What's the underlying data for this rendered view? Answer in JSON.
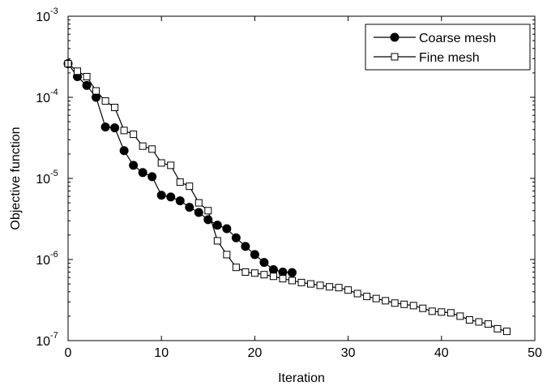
{
  "chart_data": {
    "type": "line",
    "xlabel": "Iteration",
    "ylabel": "Objective function",
    "xlim": [
      0,
      50
    ],
    "ylim": [
      1e-07,
      0.001
    ],
    "yscale": "log",
    "grid": false,
    "legend_position": "top-right",
    "x_ticks": [
      {
        "value": 0,
        "label": "0"
      },
      {
        "value": 10,
        "label": "10"
      },
      {
        "value": 20,
        "label": "20"
      },
      {
        "value": 30,
        "label": "30"
      },
      {
        "value": 40,
        "label": "40"
      },
      {
        "value": 50,
        "label": "50"
      }
    ],
    "y_ticks": [
      {
        "value": 1e-07,
        "base": "10",
        "exponent": "-7"
      },
      {
        "value": 1e-06,
        "base": "10",
        "exponent": "-6"
      },
      {
        "value": 1e-05,
        "base": "10",
        "exponent": "-5"
      },
      {
        "value": 0.0001,
        "base": "10",
        "exponent": "-4"
      },
      {
        "value": 0.001,
        "base": "10",
        "exponent": "-3"
      }
    ],
    "series": [
      {
        "name": "Coarse mesh",
        "marker": "filled-circle",
        "color": "#000000",
        "x": [
          0,
          1,
          2,
          3,
          4,
          5,
          6,
          7,
          8,
          9,
          10,
          11,
          12,
          13,
          14,
          15,
          16,
          17,
          18,
          19,
          20,
          21,
          22,
          23,
          24
        ],
        "y": [
          0.00026,
          0.00018,
          0.00014,
          0.0001,
          4.3e-05,
          4.2e-05,
          2.2e-05,
          1.45e-05,
          1.18e-05,
          1.05e-05,
          6.2e-06,
          5.9e-06,
          5.3e-06,
          4.4e-06,
          3.8e-06,
          3.1e-06,
          2.65e-06,
          2.4e-06,
          1.85e-06,
          1.45e-06,
          1.15e-06,
          9.2e-07,
          7.5e-07,
          7e-07,
          6.9e-07
        ]
      },
      {
        "name": "Fine mesh",
        "marker": "open-square",
        "color": "#000000",
        "x": [
          0,
          1,
          2,
          3,
          4,
          5,
          6,
          7,
          8,
          9,
          10,
          11,
          12,
          13,
          14,
          15,
          16,
          17,
          18,
          19,
          20,
          21,
          22,
          23,
          24,
          25,
          26,
          27,
          28,
          29,
          30,
          31,
          32,
          33,
          34,
          35,
          36,
          37,
          38,
          39,
          40,
          41,
          42,
          43,
          44,
          45,
          46,
          47
        ],
        "y": [
          0.00026,
          0.00021,
          0.00018,
          0.00012,
          9e-05,
          7.5e-05,
          3.9e-05,
          3.5e-05,
          2.5e-05,
          2.3e-05,
          1.55e-05,
          1.45e-05,
          9e-06,
          8e-06,
          5e-06,
          4e-06,
          1.7e-06,
          1.15e-06,
          8e-07,
          7e-07,
          6.8e-07,
          6.5e-07,
          6.2e-07,
          5.8e-07,
          5.5e-07,
          5.2e-07,
          5e-07,
          4.8e-07,
          4.6e-07,
          4.5e-07,
          4.2e-07,
          3.8e-07,
          3.5e-07,
          3.3e-07,
          3.1e-07,
          2.9e-07,
          2.8e-07,
          2.7e-07,
          2.5e-07,
          2.3e-07,
          2.25e-07,
          2.2e-07,
          2e-07,
          1.8e-07,
          1.7e-07,
          1.6e-07,
          1.4e-07,
          1.3e-07
        ]
      }
    ]
  }
}
